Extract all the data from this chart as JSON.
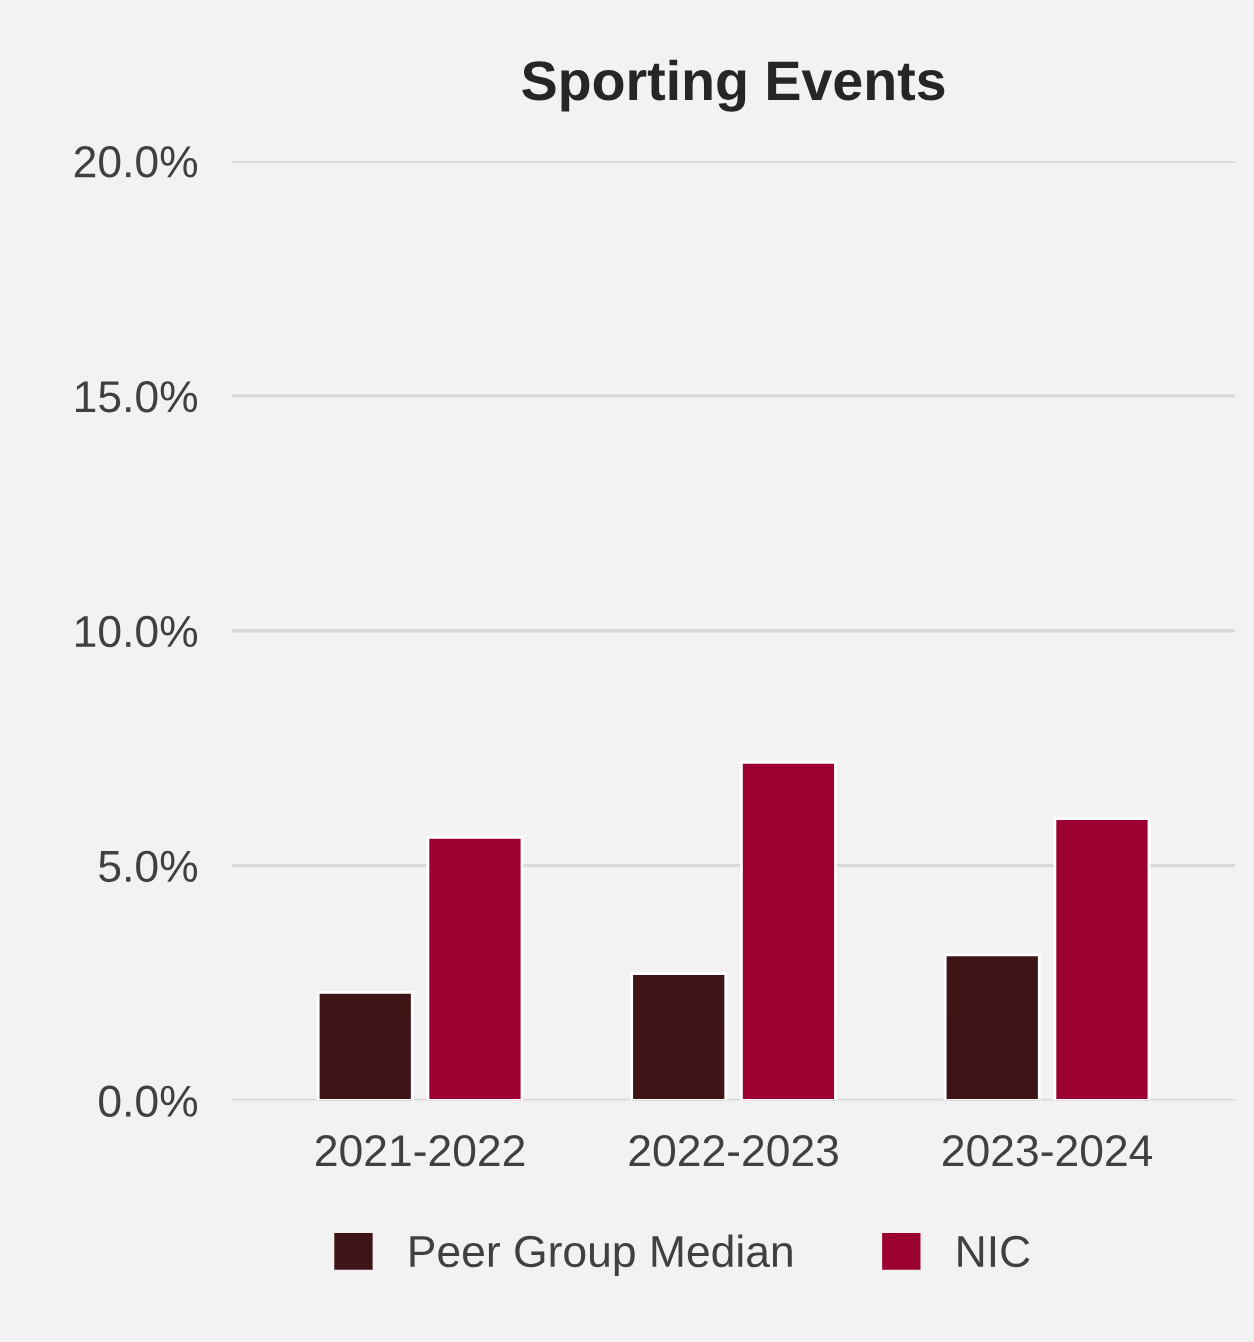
{
  "chart_data": {
    "type": "bar",
    "title": "Sporting Events",
    "categories": [
      "2021-2022",
      "2022-2023",
      "2023-2024"
    ],
    "series": [
      {
        "name": "Peer Group Median",
        "color": "#3f1416",
        "values": [
          2.3,
          2.7,
          3.1
        ]
      },
      {
        "name": "NIC",
        "color": "#9b0030",
        "values": [
          5.6,
          7.2,
          6.0
        ]
      }
    ],
    "ylim": [
      0,
      20
    ],
    "yticks": [
      {
        "value": 0,
        "label": "0.0%"
      },
      {
        "value": 5,
        "label": "5.0%"
      },
      {
        "value": 10,
        "label": "10.0%"
      },
      {
        "value": 15,
        "label": "15.0%"
      },
      {
        "value": 20,
        "label": "20.0%"
      }
    ],
    "grid": "y",
    "legend": "bottom"
  }
}
